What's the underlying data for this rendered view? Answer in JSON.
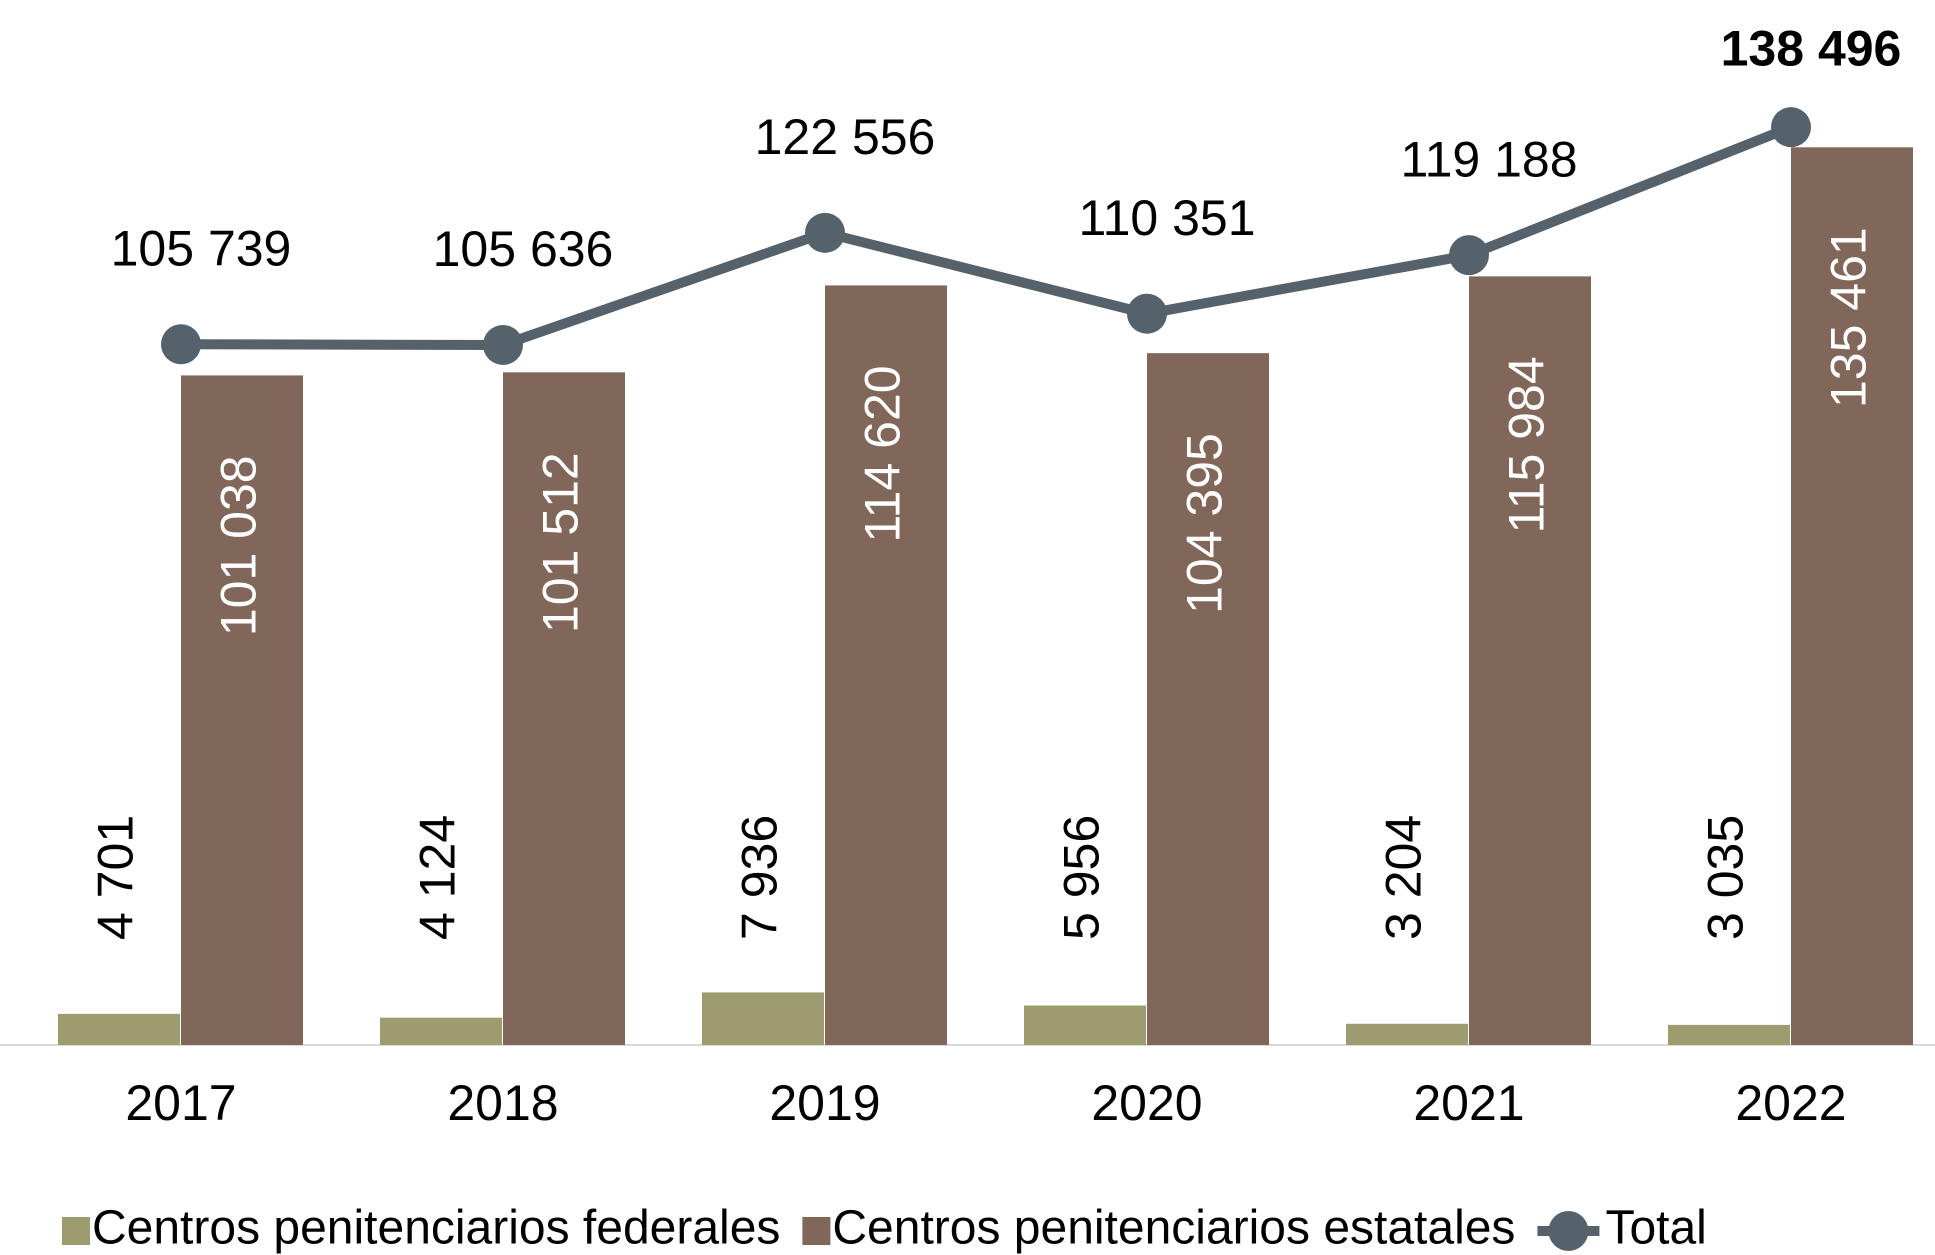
{
  "chart_data": {
    "type": "bar",
    "categories": [
      "2017",
      "2018",
      "2019",
      "2020",
      "2021",
      "2022"
    ],
    "series": [
      {
        "name": "Centros penitenciarios federales",
        "color": "#9c9c6f",
        "type": "bar",
        "values": [
          4701,
          4124,
          7936,
          5956,
          3204,
          3035
        ],
        "value_labels": [
          "4 701",
          "4 124",
          "7 936",
          "5 956",
          "3 204",
          "3 035"
        ]
      },
      {
        "name": "Centros penitenciarios estatales",
        "color": "#80675a",
        "type": "bar",
        "values": [
          101038,
          101512,
          114620,
          104395,
          115984,
          135461
        ],
        "value_labels": [
          "101 038",
          "101 512",
          "114 620",
          "104 395",
          "115 984",
          "135 461"
        ]
      },
      {
        "name": "Total",
        "color": "#56626b",
        "type": "line",
        "values": [
          105739,
          105636,
          122556,
          110351,
          119188,
          138496
        ],
        "value_labels": [
          "105 739",
          "105 636",
          "122 556",
          "110 351",
          "119 188",
          "138 496"
        ]
      }
    ],
    "legend": "bottom"
  }
}
